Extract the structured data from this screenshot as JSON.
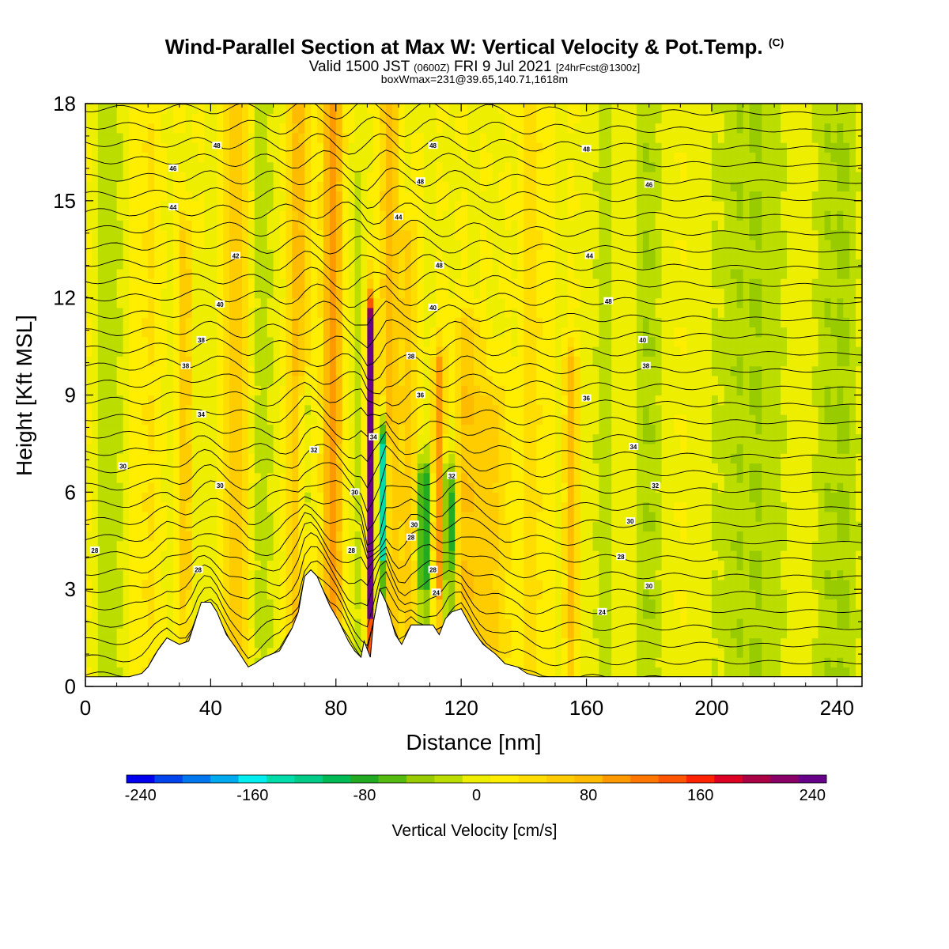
{
  "header": {
    "title_main": "Wind-Parallel Section at Max W: Vertical Velocity & Pot.Temp.",
    "title_mark": "(C)",
    "valid_a": "Valid 1500 JST",
    "valid_b": "(0600Z)",
    "valid_c": "FRI 9 Jul 2021",
    "valid_d": "[24hrFcst@1300z]",
    "boxinfo": "boxWmax=231@39.65,140.71,1618m"
  },
  "chart_data": {
    "type": "heatmap",
    "xlabel": "Distance [nm]",
    "ylabel": "Height [Kft MSL]",
    "xlim": [
      0,
      248
    ],
    "ylim": [
      0,
      18
    ],
    "xticks": [
      0,
      40,
      80,
      120,
      160,
      200,
      240
    ],
    "yticks": [
      0,
      3,
      6,
      9,
      12,
      15,
      18
    ],
    "colorbar": {
      "title": "Vertical Velocity [cm/s]",
      "range": [
        -250,
        250
      ],
      "tick_values": [
        -240,
        -160,
        -80,
        0,
        80,
        160,
        240
      ],
      "tick_labels": [
        "-240",
        "-160",
        "-80",
        "0",
        "80",
        "160",
        "240"
      ],
      "colors": [
        "#0000ee",
        "#0044ee",
        "#0077ee",
        "#00aaee",
        "#00eeee",
        "#00ddaa",
        "#00cc88",
        "#00bb55",
        "#22aa22",
        "#55bb11",
        "#99cc00",
        "#bbdd00",
        "#eeee00",
        "#ffee00",
        "#ffdd00",
        "#ffcc00",
        "#ffbb00",
        "#ff9900",
        "#ff7700",
        "#ff5500",
        "#ff2200",
        "#dd0022",
        "#aa0044",
        "#880066",
        "#660088"
      ]
    },
    "velocity_features": [
      {
        "x": 32,
        "top": 14,
        "w": 60,
        "sigma": 2.0
      },
      {
        "x": 36,
        "top": 12,
        "w": -45,
        "sigma": 1.0
      },
      {
        "x": 48,
        "top": 18,
        "w": 60,
        "sigma": 3.5
      },
      {
        "x": 57,
        "top": 18,
        "w": -30,
        "sigma": 3.0
      },
      {
        "x": 68,
        "top": 18,
        "w": 75,
        "sigma": 3.0
      },
      {
        "x": 70,
        "top": 9,
        "w": -60,
        "sigma": 2.0
      },
      {
        "x": 79,
        "top": 18,
        "w": 95,
        "sigma": 3.5
      },
      {
        "x": 86,
        "top": 16,
        "w": -25,
        "sigma": 3.0
      },
      {
        "x": 91,
        "top": 11.5,
        "w": 231,
        "sigma": 1.3
      },
      {
        "x": 95,
        "top": 7.5,
        "w": -190,
        "sigma": 1.6
      },
      {
        "x": 97,
        "top": 18,
        "w": 80,
        "sigma": 2.5
      },
      {
        "x": 103,
        "top": 14,
        "w": 55,
        "sigma": 3.0
      },
      {
        "x": 108,
        "top": 6.5,
        "w": -110,
        "sigma": 2.0
      },
      {
        "x": 113,
        "top": 10,
        "w": 95,
        "sigma": 2.0
      },
      {
        "x": 116,
        "top": 6.5,
        "w": -140,
        "sigma": 1.5
      },
      {
        "x": 122,
        "top": 11,
        "w": 60,
        "sigma": 4.0
      },
      {
        "x": 130,
        "top": 9,
        "w": 50,
        "sigma": 5.0
      },
      {
        "x": 143,
        "top": 18,
        "w": 30,
        "sigma": 4.0
      },
      {
        "x": 155,
        "top": 10,
        "w": 70,
        "sigma": 2.0
      },
      {
        "x": 165,
        "top": 18,
        "w": -25,
        "sigma": 4.0
      },
      {
        "x": 180,
        "top": 18,
        "w": -35,
        "sigma": 5.0
      },
      {
        "x": 212,
        "top": 18,
        "w": -38,
        "sigma": 12.0
      },
      {
        "x": 240,
        "top": 18,
        "w": -40,
        "sigma": 8.0
      },
      {
        "x": 8,
        "top": 18,
        "w": -30,
        "sigma": 4.0
      },
      {
        "x": 20,
        "top": 18,
        "w": 25,
        "sigma": 4.0
      }
    ],
    "contour_labels": [
      {
        "text": "48",
        "x": 42,
        "y": 16.7
      },
      {
        "text": "48",
        "x": 111,
        "y": 16.7
      },
      {
        "text": "48",
        "x": 160,
        "y": 16.6
      },
      {
        "text": "46",
        "x": 28,
        "y": 16.0
      },
      {
        "text": "48",
        "x": 107,
        "y": 15.6
      },
      {
        "text": "46",
        "x": 180,
        "y": 15.5
      },
      {
        "text": "44",
        "x": 28,
        "y": 14.8
      },
      {
        "text": "44",
        "x": 100,
        "y": 14.5
      },
      {
        "text": "42",
        "x": 48,
        "y": 13.3
      },
      {
        "text": "48",
        "x": 113,
        "y": 13.0
      },
      {
        "text": "44",
        "x": 161,
        "y": 13.3
      },
      {
        "text": "40",
        "x": 43,
        "y": 11.8
      },
      {
        "text": "40",
        "x": 111,
        "y": 11.7
      },
      {
        "text": "48",
        "x": 167,
        "y": 11.9
      },
      {
        "text": "38",
        "x": 37,
        "y": 10.7
      },
      {
        "text": "40",
        "x": 178,
        "y": 10.7
      },
      {
        "text": "38",
        "x": 104,
        "y": 10.2
      },
      {
        "text": "38",
        "x": 32,
        "y": 9.9
      },
      {
        "text": "38",
        "x": 179,
        "y": 9.9
      },
      {
        "text": "36",
        "x": 107,
        "y": 9.0
      },
      {
        "text": "36",
        "x": 160,
        "y": 8.9
      },
      {
        "text": "34",
        "x": 37,
        "y": 8.4
      },
      {
        "text": "34",
        "x": 92,
        "y": 7.7
      },
      {
        "text": "32",
        "x": 73,
        "y": 7.3
      },
      {
        "text": "34",
        "x": 175,
        "y": 7.4
      },
      {
        "text": "30",
        "x": 12,
        "y": 6.8
      },
      {
        "text": "32",
        "x": 117,
        "y": 6.5
      },
      {
        "text": "30",
        "x": 43,
        "y": 6.2
      },
      {
        "text": "32",
        "x": 182,
        "y": 6.2
      },
      {
        "text": "30",
        "x": 86,
        "y": 6.0
      },
      {
        "text": "30",
        "x": 105,
        "y": 5.0
      },
      {
        "text": "30",
        "x": 174,
        "y": 5.1
      },
      {
        "text": "28",
        "x": 104,
        "y": 4.6
      },
      {
        "text": "28",
        "x": 85,
        "y": 4.2
      },
      {
        "text": "28",
        "x": 3,
        "y": 4.2
      },
      {
        "text": "28",
        "x": 171,
        "y": 4.0
      },
      {
        "text": "28",
        "x": 36,
        "y": 3.6
      },
      {
        "text": "28",
        "x": 111,
        "y": 3.6
      },
      {
        "text": "30",
        "x": 180,
        "y": 3.1
      },
      {
        "text": "24",
        "x": 112,
        "y": 2.9
      },
      {
        "text": "24",
        "x": 165,
        "y": 2.3
      }
    ],
    "terrain": [
      [
        0,
        0.3
      ],
      [
        14,
        0.3
      ],
      [
        18,
        0.4
      ],
      [
        20,
        0.6
      ],
      [
        23,
        1.1
      ],
      [
        26,
        1.5
      ],
      [
        30,
        1.3
      ],
      [
        33,
        1.4
      ],
      [
        35,
        2.0
      ],
      [
        37,
        2.6
      ],
      [
        40,
        2.6
      ],
      [
        42,
        2.3
      ],
      [
        45,
        1.6
      ],
      [
        48,
        1.2
      ],
      [
        52,
        0.6
      ],
      [
        54,
        0.7
      ],
      [
        57,
        0.9
      ],
      [
        62,
        1.1
      ],
      [
        66,
        1.8
      ],
      [
        68,
        2.3
      ],
      [
        70,
        3.4
      ],
      [
        72,
        3.6
      ],
      [
        74,
        3.4
      ],
      [
        78,
        2.5
      ],
      [
        81,
        2.0
      ],
      [
        84,
        1.4
      ],
      [
        86,
        1.1
      ],
      [
        88,
        0.9
      ],
      [
        89,
        1.4
      ],
      [
        91,
        0.9
      ],
      [
        92,
        2.0
      ],
      [
        94,
        3.0
      ],
      [
        96,
        2.6
      ],
      [
        99,
        1.6
      ],
      [
        101,
        1.3
      ],
      [
        104,
        1.9
      ],
      [
        108,
        1.9
      ],
      [
        111,
        1.9
      ],
      [
        113,
        1.6
      ],
      [
        115,
        2.1
      ],
      [
        117,
        2.3
      ],
      [
        120,
        2.4
      ],
      [
        124,
        1.7
      ],
      [
        127,
        1.3
      ],
      [
        131,
        1.0
      ],
      [
        134,
        0.7
      ],
      [
        138,
        0.6
      ],
      [
        141,
        0.4
      ],
      [
        145,
        0.3
      ],
      [
        248,
        0.3
      ]
    ]
  }
}
